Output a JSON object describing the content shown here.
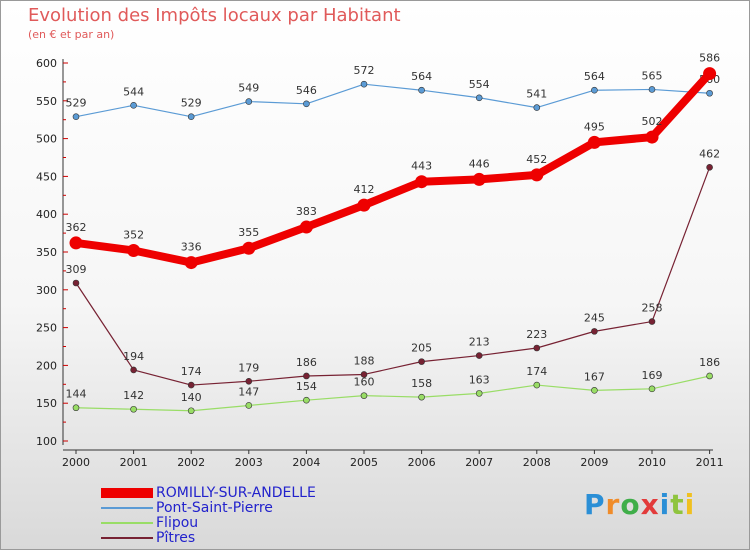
{
  "title": "Evolution des Impôts locaux par Habitant",
  "subtitle": "(en € et par an)",
  "logo": {
    "text": "Proxiti",
    "colors": [
      "#2b8fd6",
      "#f08c2a",
      "#3fae49",
      "#e23b3b",
      "#2b8fd6",
      "#8fc43e",
      "#f0c020"
    ]
  },
  "chart_data": {
    "type": "line",
    "title": "Evolution des Impôts locaux par Habitant",
    "subtitle": "(en € et par an)",
    "categories": [
      "2000",
      "2001",
      "2002",
      "2003",
      "2004",
      "2005",
      "2006",
      "2007",
      "2008",
      "2009",
      "2010",
      "2011"
    ],
    "ylim": [
      100,
      600
    ],
    "yticks": [
      "100",
      "150",
      "200",
      "250",
      "300",
      "350",
      "400",
      "450",
      "500",
      "550",
      "600"
    ],
    "grid": false,
    "legend": "bottom-left",
    "series": [
      {
        "name": "Pont-Saint-Pierre",
        "color": "#5b9bd5",
        "values": [
          529,
          544,
          529,
          549,
          546,
          572,
          564,
          554,
          541,
          564,
          565,
          560
        ],
        "labels": [
          "529",
          "544",
          "529",
          "549",
          "546",
          "572",
          "564",
          "554",
          "541",
          "564",
          "565",
          "560"
        ]
      },
      {
        "name": "Flipou",
        "color": "#99dd66",
        "values": [
          144,
          142,
          140,
          147,
          154,
          160,
          158,
          163,
          174,
          167,
          169,
          186
        ],
        "labels": [
          "144",
          "142",
          "140",
          "147",
          "154",
          "160",
          "158",
          "163",
          "174",
          "167",
          "169",
          "186"
        ]
      },
      {
        "name": "Pîtres",
        "color": "#772233",
        "values": [
          309,
          194,
          174,
          179,
          186,
          188,
          205,
          213,
          223,
          245,
          258,
          462
        ],
        "labels": [
          "309",
          "194",
          "174",
          "179",
          "186",
          "188",
          "205",
          "213",
          "223",
          "245",
          "258",
          "462"
        ]
      },
      {
        "name": "ROMILLY-SUR-ANDELLE",
        "color": "#ee0000",
        "values": [
          362,
          352,
          336,
          355,
          383,
          412,
          443,
          446,
          452,
          495,
          502,
          586
        ],
        "labels": [
          "362",
          "352",
          "336",
          "355",
          "383",
          "412",
          "443",
          "446",
          "452",
          "495",
          "502",
          "586"
        ]
      }
    ]
  },
  "legend_items": [
    {
      "label": "ROMILLY-SUR-ANDELLE",
      "color": "#ee0000"
    },
    {
      "label": "Pont-Saint-Pierre",
      "color": "#5b9bd5"
    },
    {
      "label": "Flipou",
      "color": "#99dd66"
    },
    {
      "label": "Pîtres",
      "color": "#772233"
    }
  ]
}
